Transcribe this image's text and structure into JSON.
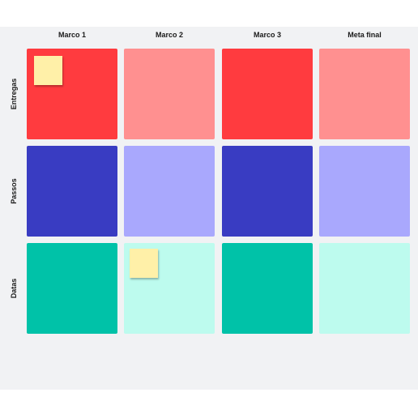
{
  "board": {
    "columns": [
      "Marco 1",
      "Marco 2",
      "Marco 3",
      "Meta final"
    ],
    "rows": [
      {
        "label": "Entregas",
        "colors": [
          "#ff3b3f",
          "#ff9090",
          "#ff3b3f",
          "#ff9090"
        ]
      },
      {
        "label": "Passos",
        "colors": [
          "#393cc2",
          "#a9a8fd",
          "#393cc2",
          "#a9a8fd"
        ]
      },
      {
        "label": "Datas",
        "colors": [
          "#00c2a8",
          "#bdfbee",
          "#00c2a8",
          "#bdfbee"
        ]
      }
    ],
    "sticky_color": "#fff0a8"
  }
}
